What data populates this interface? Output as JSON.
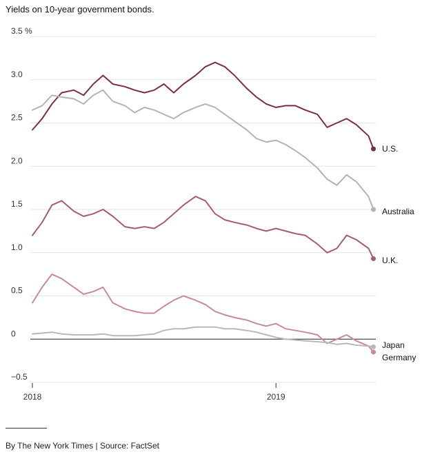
{
  "subtitle": "Yields on 10-year government bonds.",
  "credit": "By The New York Times | Source: FactSet",
  "chart_data": {
    "type": "line",
    "title": "",
    "xlabel": "",
    "ylabel": "",
    "xlim": [
      2018.0,
      2019.41
    ],
    "ylim": [
      -0.5,
      3.5
    ],
    "y_ticks": [
      {
        "value": 3.5,
        "label": "3.5 %"
      },
      {
        "value": 3.0,
        "label": "3.0"
      },
      {
        "value": 2.5,
        "label": "2.5"
      },
      {
        "value": 2.0,
        "label": "2.0"
      },
      {
        "value": 1.5,
        "label": "1.5"
      },
      {
        "value": 1.0,
        "label": "1.0"
      },
      {
        "value": 0.5,
        "label": "0.5"
      },
      {
        "value": 0,
        "label": "0"
      },
      {
        "value": -0.5,
        "label": "−0.5"
      }
    ],
    "x_ticks": [
      {
        "value": 2018.0,
        "label": "2018"
      },
      {
        "value": 2019.0,
        "label": "2019"
      }
    ],
    "grid": true,
    "legend": "direct labels at line ends",
    "series": [
      {
        "name": "U.S.",
        "color": "#7a2c4e",
        "end_marker": true,
        "x": [
          2018.0,
          2018.04,
          2018.08,
          2018.12,
          2018.17,
          2018.21,
          2018.25,
          2018.29,
          2018.33,
          2018.38,
          2018.42,
          2018.46,
          2018.5,
          2018.54,
          2018.58,
          2018.62,
          2018.67,
          2018.71,
          2018.75,
          2018.79,
          2018.83,
          2018.88,
          2018.92,
          2018.96,
          2019.0,
          2019.04,
          2019.08,
          2019.12,
          2019.17,
          2019.21,
          2019.25,
          2019.29,
          2019.33,
          2019.38,
          2019.4
        ],
        "y": [
          2.42,
          2.55,
          2.72,
          2.85,
          2.88,
          2.82,
          2.95,
          3.05,
          2.95,
          2.92,
          2.88,
          2.85,
          2.88,
          2.95,
          2.85,
          2.95,
          3.05,
          3.15,
          3.2,
          3.15,
          3.05,
          2.9,
          2.8,
          2.72,
          2.68,
          2.7,
          2.7,
          2.65,
          2.6,
          2.45,
          2.5,
          2.55,
          2.48,
          2.35,
          2.2
        ]
      },
      {
        "name": "Australia",
        "color": "#b3b3b3",
        "end_marker": true,
        "x": [
          2018.0,
          2018.04,
          2018.08,
          2018.12,
          2018.17,
          2018.21,
          2018.25,
          2018.29,
          2018.33,
          2018.38,
          2018.42,
          2018.46,
          2018.5,
          2018.54,
          2018.58,
          2018.62,
          2018.67,
          2018.71,
          2018.75,
          2018.79,
          2018.83,
          2018.88,
          2018.92,
          2018.96,
          2019.0,
          2019.04,
          2019.08,
          2019.12,
          2019.17,
          2019.21,
          2019.25,
          2019.29,
          2019.33,
          2019.38,
          2019.4
        ],
        "y": [
          2.65,
          2.7,
          2.82,
          2.8,
          2.78,
          2.72,
          2.82,
          2.88,
          2.75,
          2.7,
          2.62,
          2.68,
          2.65,
          2.6,
          2.55,
          2.62,
          2.68,
          2.72,
          2.68,
          2.6,
          2.52,
          2.42,
          2.32,
          2.28,
          2.3,
          2.25,
          2.18,
          2.1,
          1.98,
          1.85,
          1.78,
          1.9,
          1.82,
          1.65,
          1.5
        ]
      },
      {
        "name": "U.K.",
        "color": "#a45a79",
        "end_marker": true,
        "x": [
          2018.0,
          2018.04,
          2018.08,
          2018.12,
          2018.17,
          2018.21,
          2018.25,
          2018.29,
          2018.33,
          2018.38,
          2018.42,
          2018.46,
          2018.5,
          2018.54,
          2018.58,
          2018.62,
          2018.67,
          2018.71,
          2018.75,
          2018.79,
          2018.83,
          2018.88,
          2018.92,
          2018.96,
          2019.0,
          2019.04,
          2019.08,
          2019.12,
          2019.17,
          2019.21,
          2019.25,
          2019.29,
          2019.33,
          2019.38,
          2019.4
        ],
        "y": [
          1.2,
          1.35,
          1.55,
          1.6,
          1.48,
          1.42,
          1.45,
          1.5,
          1.42,
          1.3,
          1.28,
          1.3,
          1.28,
          1.35,
          1.45,
          1.55,
          1.65,
          1.6,
          1.45,
          1.38,
          1.35,
          1.32,
          1.28,
          1.25,
          1.28,
          1.25,
          1.22,
          1.2,
          1.1,
          1.0,
          1.05,
          1.2,
          1.15,
          1.05,
          0.93
        ]
      },
      {
        "name": "Germany",
        "color": "#c8899e",
        "end_marker": true,
        "x": [
          2018.0,
          2018.04,
          2018.08,
          2018.12,
          2018.17,
          2018.21,
          2018.25,
          2018.29,
          2018.33,
          2018.38,
          2018.42,
          2018.46,
          2018.5,
          2018.54,
          2018.58,
          2018.62,
          2018.67,
          2018.71,
          2018.75,
          2018.79,
          2018.83,
          2018.88,
          2018.92,
          2018.96,
          2019.0,
          2019.04,
          2019.08,
          2019.12,
          2019.17,
          2019.21,
          2019.25,
          2019.29,
          2019.33,
          2019.38,
          2019.4
        ],
        "y": [
          0.42,
          0.6,
          0.75,
          0.7,
          0.6,
          0.52,
          0.55,
          0.6,
          0.42,
          0.35,
          0.32,
          0.3,
          0.3,
          0.38,
          0.45,
          0.5,
          0.45,
          0.4,
          0.32,
          0.28,
          0.25,
          0.22,
          0.18,
          0.15,
          0.18,
          0.12,
          0.1,
          0.08,
          0.05,
          -0.05,
          0.0,
          0.05,
          -0.02,
          -0.08,
          -0.15
        ]
      },
      {
        "name": "Japan",
        "color": "#b8b8b8",
        "end_marker": true,
        "x": [
          2018.0,
          2018.04,
          2018.08,
          2018.12,
          2018.17,
          2018.21,
          2018.25,
          2018.29,
          2018.33,
          2018.38,
          2018.42,
          2018.46,
          2018.5,
          2018.54,
          2018.58,
          2018.62,
          2018.67,
          2018.71,
          2018.75,
          2018.79,
          2018.83,
          2018.88,
          2018.92,
          2018.96,
          2019.0,
          2019.04,
          2019.08,
          2019.12,
          2019.17,
          2019.21,
          2019.25,
          2019.29,
          2019.33,
          2019.38,
          2019.4
        ],
        "y": [
          0.06,
          0.07,
          0.08,
          0.06,
          0.05,
          0.05,
          0.05,
          0.06,
          0.04,
          0.04,
          0.04,
          0.05,
          0.06,
          0.1,
          0.12,
          0.12,
          0.14,
          0.14,
          0.14,
          0.12,
          0.12,
          0.1,
          0.08,
          0.05,
          0.02,
          0.0,
          -0.01,
          -0.02,
          -0.03,
          -0.04,
          -0.06,
          -0.05,
          -0.07,
          -0.08,
          -0.09
        ]
      }
    ]
  }
}
